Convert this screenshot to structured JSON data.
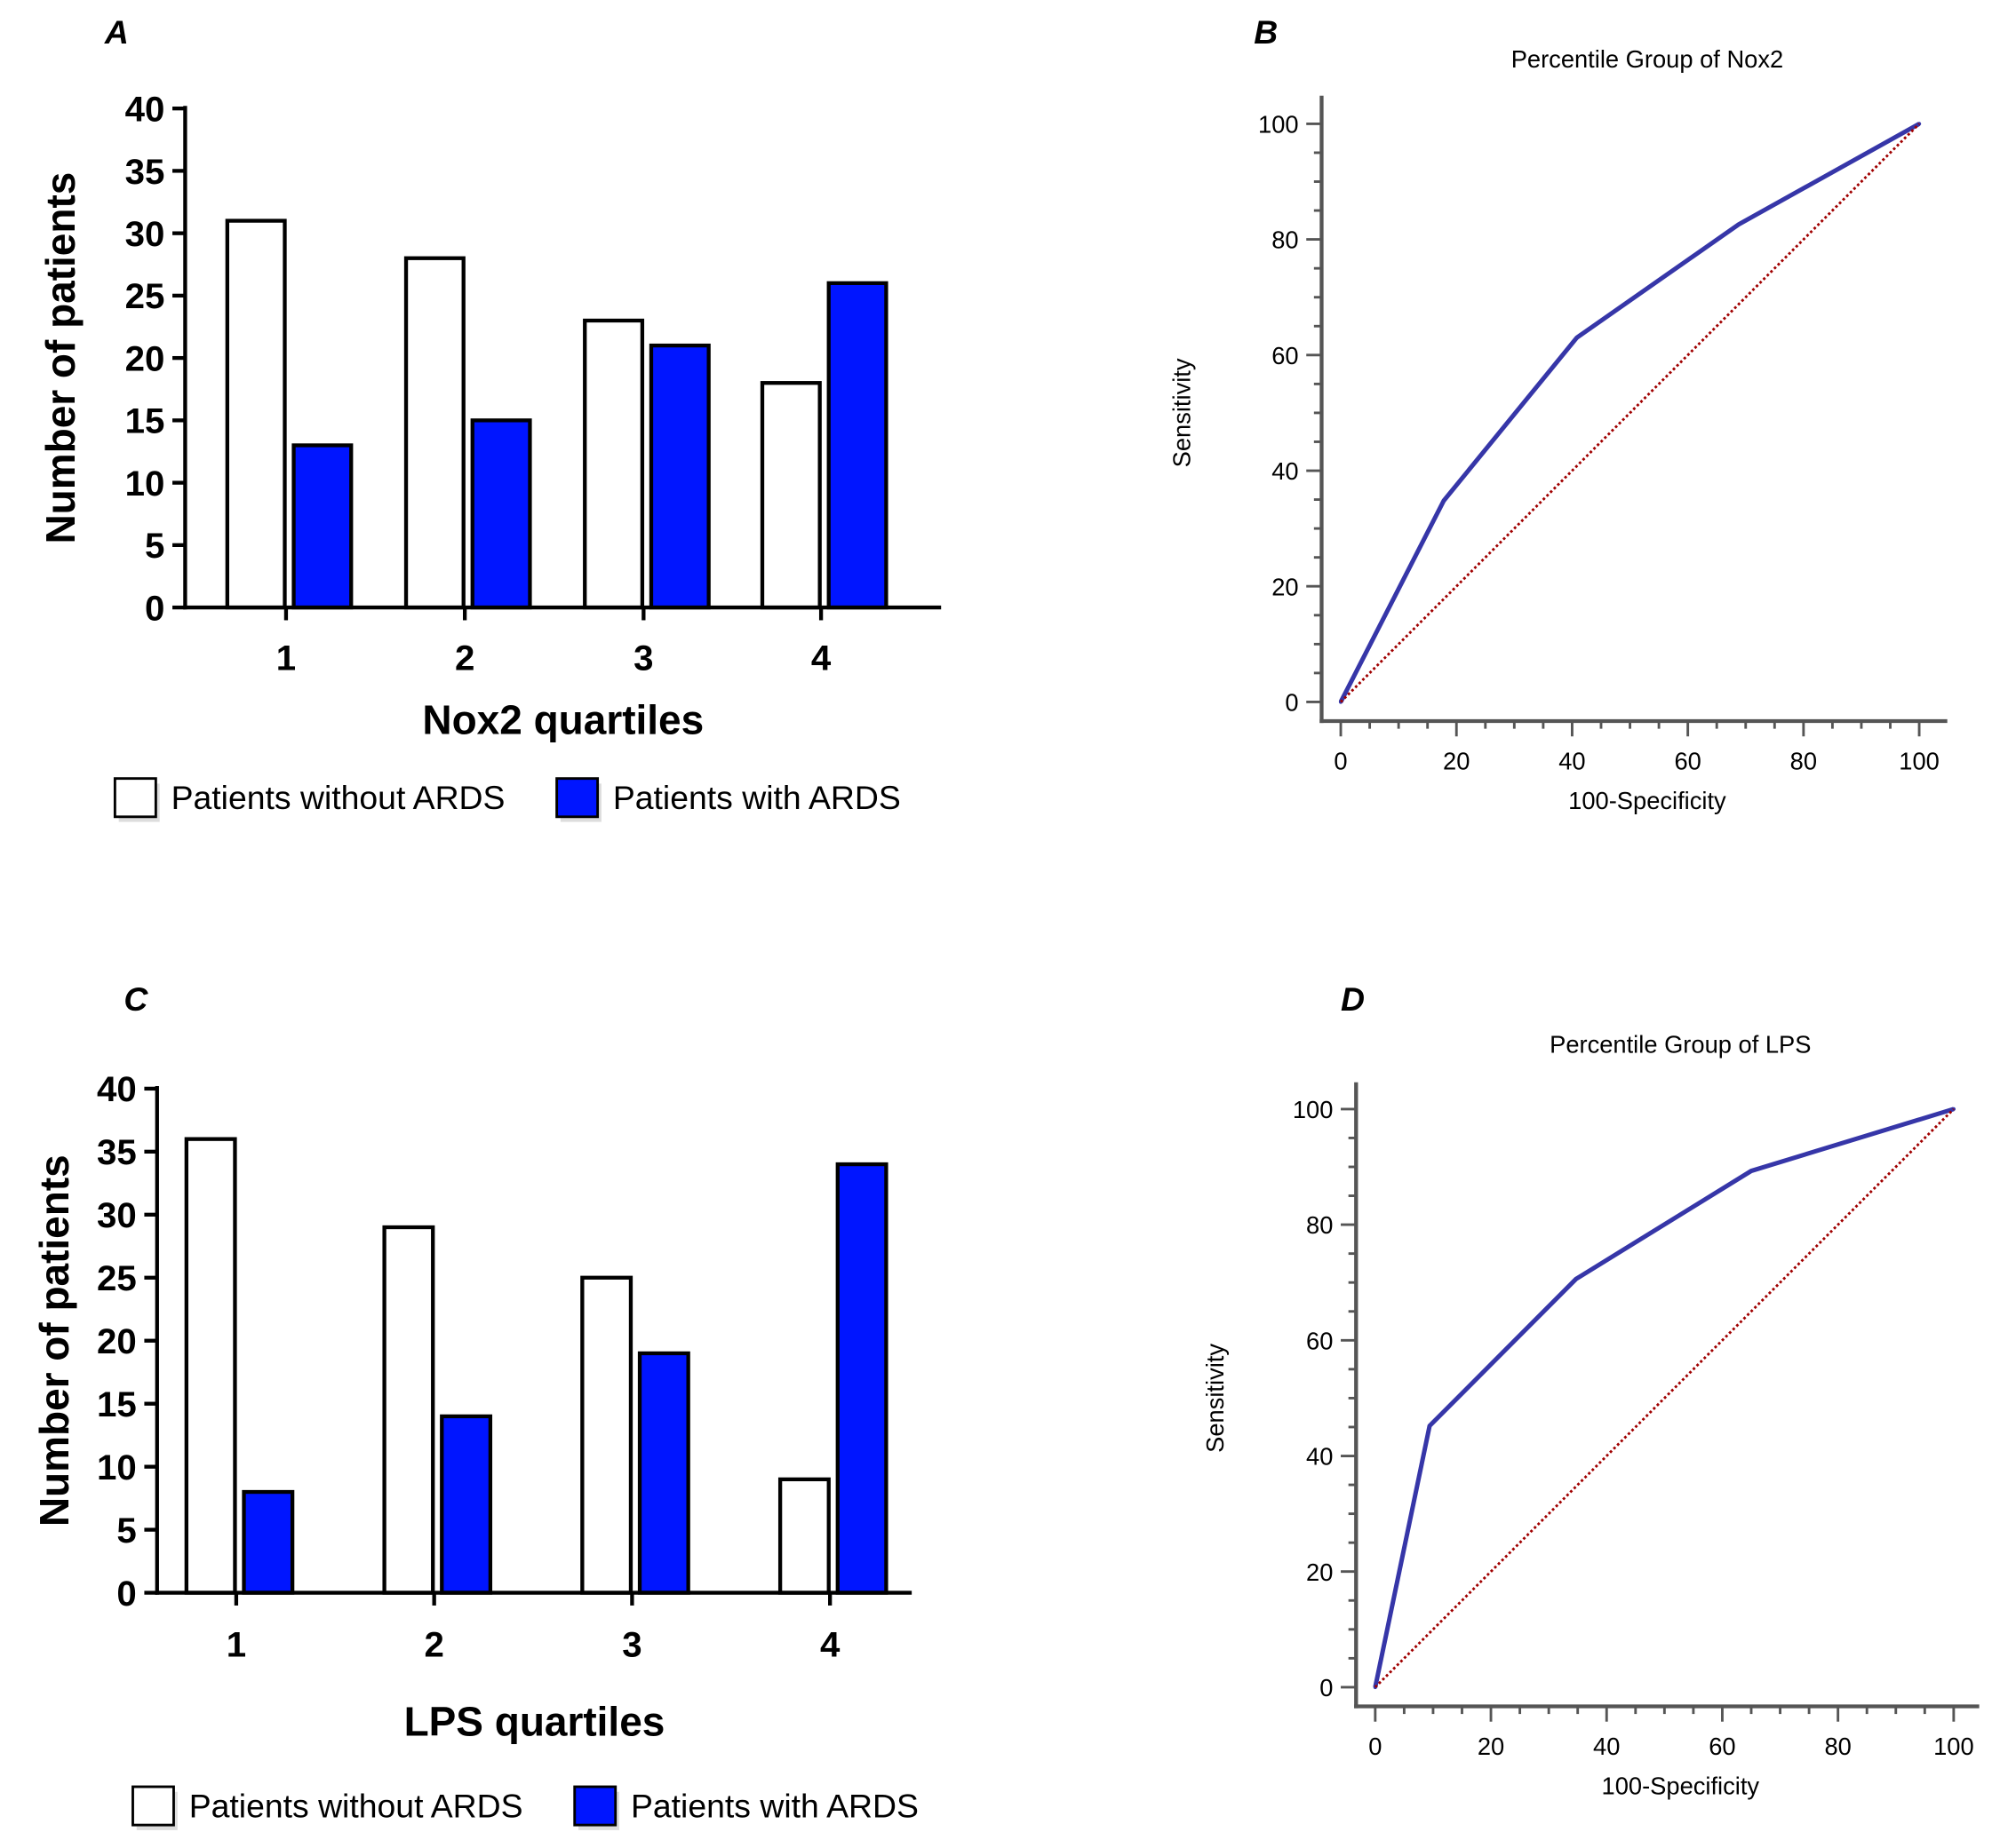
{
  "panels": {
    "A": "A",
    "B": "B",
    "C": "C",
    "D": "D"
  },
  "colors": {
    "without": "#ffffff",
    "with": "#0015ff",
    "roc": "#3636a8",
    "reference": "#a00000",
    "axis": "#555555"
  },
  "chart_data": [
    {
      "type": "bar",
      "panel": "A",
      "xlabel": "Nox2 quartiles",
      "ylabel": "Number of patients",
      "categories": [
        "1",
        "2",
        "3",
        "4"
      ],
      "ylim": [
        0,
        40
      ],
      "yticks": [
        "0",
        "5",
        "10",
        "15",
        "20",
        "25",
        "30",
        "35",
        "40"
      ],
      "series": [
        {
          "name": "Patients without ARDS",
          "values": [
            31,
            28,
            23,
            18
          ]
        },
        {
          "name": "Patients with ARDS",
          "values": [
            13,
            15,
            21,
            26
          ]
        }
      ],
      "legend": "bottom"
    },
    {
      "type": "line",
      "panel": "B",
      "title": "Percentile Group of Nox2",
      "xlabel": "100-Specificity",
      "ylabel": "Sensitivity",
      "xlim": [
        0,
        100
      ],
      "ylim": [
        0,
        100
      ],
      "xticks": [
        "0",
        "20",
        "40",
        "60",
        "80",
        "100"
      ],
      "yticks": [
        "0",
        "20",
        "40",
        "60",
        "80",
        "100"
      ],
      "series": [
        {
          "x": [
            0,
            17.8,
            40.8,
            68.8,
            100
          ],
          "y": [
            0,
            34.8,
            63,
            82.6,
            100
          ]
        },
        {
          "x": [
            0,
            100
          ],
          "y": [
            0,
            100
          ],
          "style": "dotted"
        }
      ]
    },
    {
      "type": "bar",
      "panel": "C",
      "xlabel": "LPS quartiles",
      "ylabel": "Number of patients",
      "categories": [
        "1",
        "2",
        "3",
        "4"
      ],
      "ylim": [
        0,
        40
      ],
      "yticks": [
        "0",
        "5",
        "10",
        "15",
        "20",
        "25",
        "30",
        "35",
        "40"
      ],
      "series": [
        {
          "name": "Patients without ARDS",
          "values": [
            36,
            29,
            25,
            9
          ]
        },
        {
          "name": "Patients with ARDS",
          "values": [
            8,
            14,
            19,
            34
          ]
        }
      ],
      "legend": "bottom"
    },
    {
      "type": "line",
      "panel": "D",
      "title": "Percentile Group of LPS",
      "xlabel": "100-Specificity",
      "ylabel": "Sensitivity",
      "xlim": [
        0,
        100
      ],
      "ylim": [
        0,
        100
      ],
      "xticks": [
        "0",
        "20",
        "40",
        "60",
        "80",
        "100"
      ],
      "yticks": [
        "0",
        "20",
        "40",
        "60",
        "80",
        "100"
      ],
      "series": [
        {
          "x": [
            0,
            9.4,
            34.7,
            65,
            100
          ],
          "y": [
            0,
            45.2,
            70.6,
            89.3,
            100
          ]
        },
        {
          "x": [
            0,
            100
          ],
          "y": [
            0,
            100
          ],
          "style": "dotted"
        }
      ]
    }
  ]
}
